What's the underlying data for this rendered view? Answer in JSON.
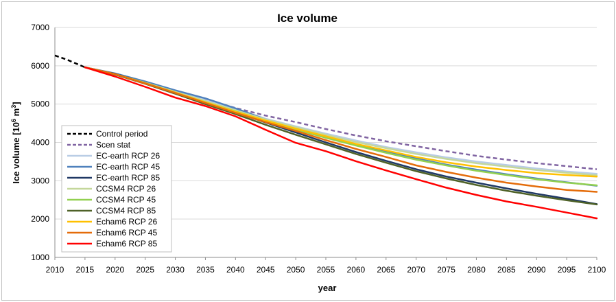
{
  "chart_data": {
    "type": "line",
    "title": "Ice volume",
    "xlabel": "year",
    "ylabel_main": "Ice volume [10",
    "ylabel_sup": "6",
    "ylabel_unit": " m",
    "ylabel_sup2": "3",
    "ylabel_end": "]",
    "xlim": [
      2010,
      2100
    ],
    "ylim": [
      1000,
      7000
    ],
    "xticks": [
      2010,
      2015,
      2020,
      2025,
      2030,
      2035,
      2040,
      2045,
      2050,
      2055,
      2060,
      2065,
      2070,
      2075,
      2080,
      2085,
      2090,
      2095,
      2100
    ],
    "yticks": [
      1000,
      2000,
      3000,
      4000,
      5000,
      6000,
      7000
    ],
    "grid": "horizontal",
    "legend_position": "lower-left",
    "series": [
      {
        "name": "Control period",
        "color": "#000000",
        "dash": "dashed",
        "x": [
          2010,
          2012,
          2015
        ],
        "y": [
          6270,
          6160,
          5960
        ]
      },
      {
        "name": "Scen stat",
        "color": "#8064a2",
        "dash": "dashed",
        "x": [
          2015,
          2020,
          2025,
          2030,
          2035,
          2040,
          2045,
          2050,
          2055,
          2060,
          2065,
          2070,
          2075,
          2080,
          2085,
          2090,
          2095,
          2100
        ],
        "y": [
          5960,
          5780,
          5560,
          5330,
          5120,
          4900,
          4700,
          4530,
          4350,
          4180,
          4030,
          3900,
          3770,
          3650,
          3550,
          3460,
          3380,
          3300
        ]
      },
      {
        "name": "EC-earth RCP 26",
        "color": "#b9cde5",
        "dash": "solid",
        "x": [
          2015,
          2020,
          2025,
          2030,
          2035,
          2040,
          2045,
          2050,
          2055,
          2060,
          2065,
          2070,
          2075,
          2080,
          2085,
          2090,
          2095,
          2100
        ],
        "y": [
          5960,
          5790,
          5570,
          5340,
          5100,
          4870,
          4620,
          4420,
          4230,
          4050,
          3880,
          3740,
          3610,
          3500,
          3410,
          3320,
          3240,
          3180
        ]
      },
      {
        "name": "EC-earth RCP 45",
        "color": "#4f81bd",
        "dash": "solid",
        "x": [
          2015,
          2020,
          2025,
          2030,
          2035,
          2040,
          2045,
          2050,
          2055,
          2060,
          2065,
          2070,
          2075,
          2080,
          2085,
          2090,
          2095,
          2100
        ],
        "y": [
          5960,
          5800,
          5590,
          5360,
          5150,
          4890,
          4600,
          4360,
          4150,
          3950,
          3770,
          3580,
          3420,
          3290,
          3170,
          3060,
          2960,
          2870
        ]
      },
      {
        "name": "EC-earth RCP 85",
        "color": "#1f3864",
        "dash": "solid",
        "x": [
          2015,
          2020,
          2025,
          2030,
          2035,
          2040,
          2045,
          2050,
          2055,
          2060,
          2065,
          2070,
          2075,
          2080,
          2085,
          2090,
          2095,
          2100
        ],
        "y": [
          5960,
          5790,
          5560,
          5310,
          5060,
          4790,
          4520,
          4260,
          4000,
          3750,
          3520,
          3300,
          3110,
          2950,
          2800,
          2660,
          2530,
          2390
        ]
      },
      {
        "name": "CCSM4 RCP 26",
        "color": "#c4d79b",
        "dash": "solid",
        "x": [
          2015,
          2020,
          2025,
          2030,
          2035,
          2040,
          2045,
          2050,
          2055,
          2060,
          2065,
          2070,
          2075,
          2080,
          2085,
          2090,
          2095,
          2100
        ],
        "y": [
          5960,
          5780,
          5560,
          5320,
          5080,
          4840,
          4600,
          4400,
          4200,
          4010,
          3850,
          3700,
          3570,
          3460,
          3370,
          3280,
          3210,
          3140
        ]
      },
      {
        "name": "CCSM4 RCP 45",
        "color": "#92d050",
        "dash": "solid",
        "x": [
          2015,
          2020,
          2025,
          2030,
          2035,
          2040,
          2045,
          2050,
          2055,
          2060,
          2065,
          2070,
          2075,
          2080,
          2085,
          2090,
          2095,
          2100
        ],
        "y": [
          5960,
          5780,
          5550,
          5300,
          5050,
          4810,
          4560,
          4340,
          4120,
          3920,
          3730,
          3550,
          3400,
          3260,
          3150,
          3040,
          2950,
          2880
        ]
      },
      {
        "name": "CCSM4 RCP 85",
        "color": "#4f6228",
        "dash": "solid",
        "x": [
          2015,
          2020,
          2025,
          2030,
          2035,
          2040,
          2045,
          2050,
          2055,
          2060,
          2065,
          2070,
          2075,
          2080,
          2085,
          2090,
          2095,
          2100
        ],
        "y": [
          5960,
          5770,
          5530,
          5270,
          5000,
          4740,
          4460,
          4200,
          3950,
          3700,
          3470,
          3250,
          3060,
          2890,
          2740,
          2610,
          2490,
          2380
        ]
      },
      {
        "name": "Echam6 RCP 26",
        "color": "#ffc000",
        "dash": "solid",
        "x": [
          2015,
          2020,
          2025,
          2030,
          2035,
          2040,
          2045,
          2050,
          2055,
          2060,
          2065,
          2070,
          2075,
          2080,
          2085,
          2090,
          2095,
          2100
        ],
        "y": [
          5960,
          5780,
          5540,
          5300,
          5050,
          4800,
          4570,
          4360,
          4160,
          3960,
          3790,
          3620,
          3480,
          3370,
          3280,
          3200,
          3150,
          3110
        ]
      },
      {
        "name": "Echam6 RCP 45",
        "color": "#e46c0a",
        "dash": "solid",
        "x": [
          2015,
          2020,
          2025,
          2030,
          2035,
          2040,
          2045,
          2050,
          2055,
          2060,
          2065,
          2070,
          2075,
          2080,
          2085,
          2090,
          2095,
          2100
        ],
        "y": [
          5960,
          5780,
          5540,
          5290,
          5030,
          4770,
          4530,
          4300,
          4060,
          3830,
          3620,
          3400,
          3230,
          3080,
          2950,
          2850,
          2760,
          2710
        ]
      },
      {
        "name": "Echam6 RCP 85",
        "color": "#ff0000",
        "dash": "solid",
        "x": [
          2015,
          2020,
          2025,
          2030,
          2035,
          2040,
          2045,
          2050,
          2055,
          2060,
          2065,
          2070,
          2075,
          2080,
          2085,
          2090,
          2095,
          2100
        ],
        "y": [
          5960,
          5720,
          5450,
          5170,
          4950,
          4680,
          4330,
          3990,
          3770,
          3510,
          3270,
          3040,
          2820,
          2630,
          2460,
          2320,
          2170,
          2020
        ]
      }
    ]
  }
}
